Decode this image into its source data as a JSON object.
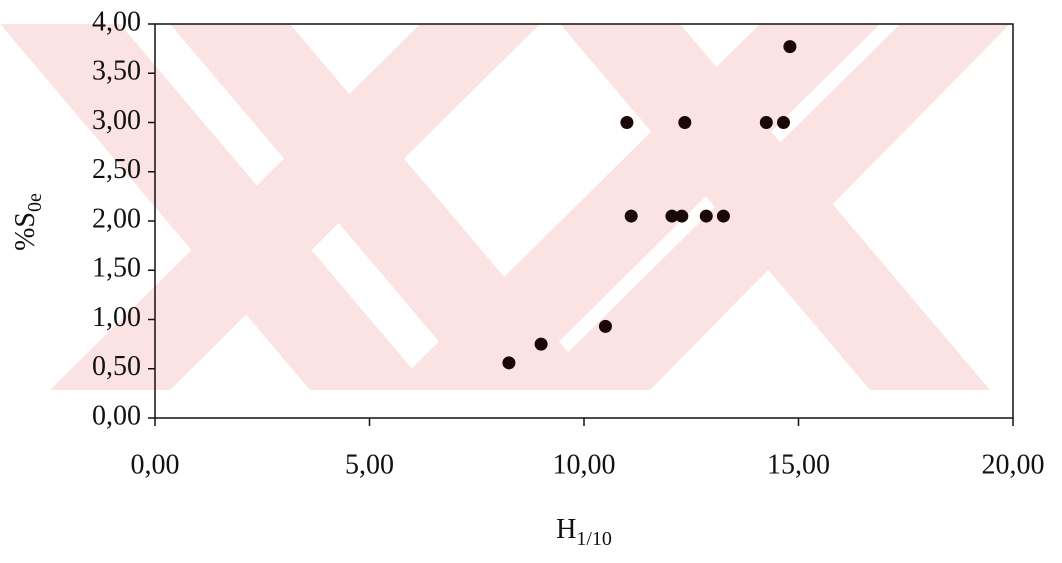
{
  "chart_data": {
    "type": "scatter",
    "x_label": {
      "text": "H",
      "subscript": "1/10"
    },
    "y_label": {
      "text": "%S",
      "subscript": "0e"
    },
    "series": [
      {
        "color": "#1a0808",
        "x": [
          8.25,
          9.0,
          10.5,
          11.0,
          11.1,
          12.05,
          12.28,
          12.35,
          12.85,
          13.25,
          14.25,
          14.65,
          14.8
        ],
        "values": [
          0.56,
          0.75,
          0.93,
          3.0,
          2.05,
          2.05,
          2.05,
          3.0,
          2.05,
          2.05,
          3.0,
          3.0,
          3.77
        ]
      }
    ],
    "xlim": [
      0,
      20
    ],
    "xticks": [
      {
        "value": 0,
        "label": "0,00"
      },
      {
        "value": 5,
        "label": "5,00"
      },
      {
        "value": 10,
        "label": "10,00"
      },
      {
        "value": 15,
        "label": "15,00"
      },
      {
        "value": 20,
        "label": "20,00"
      }
    ],
    "ylim": [
      0,
      4
    ],
    "yticks": [
      {
        "value": 0,
        "label": "0,00"
      },
      {
        "value": 0.5,
        "label": "0,50"
      },
      {
        "value": 1,
        "label": "1,00"
      },
      {
        "value": 1.5,
        "label": "1,50"
      },
      {
        "value": 2,
        "label": "2,00"
      },
      {
        "value": 2.5,
        "label": "2,50"
      },
      {
        "value": 3,
        "label": "3,00"
      },
      {
        "value": 3.5,
        "label": "3,50"
      },
      {
        "value": 4,
        "label": "4,00"
      }
    ],
    "grid": false
  }
}
